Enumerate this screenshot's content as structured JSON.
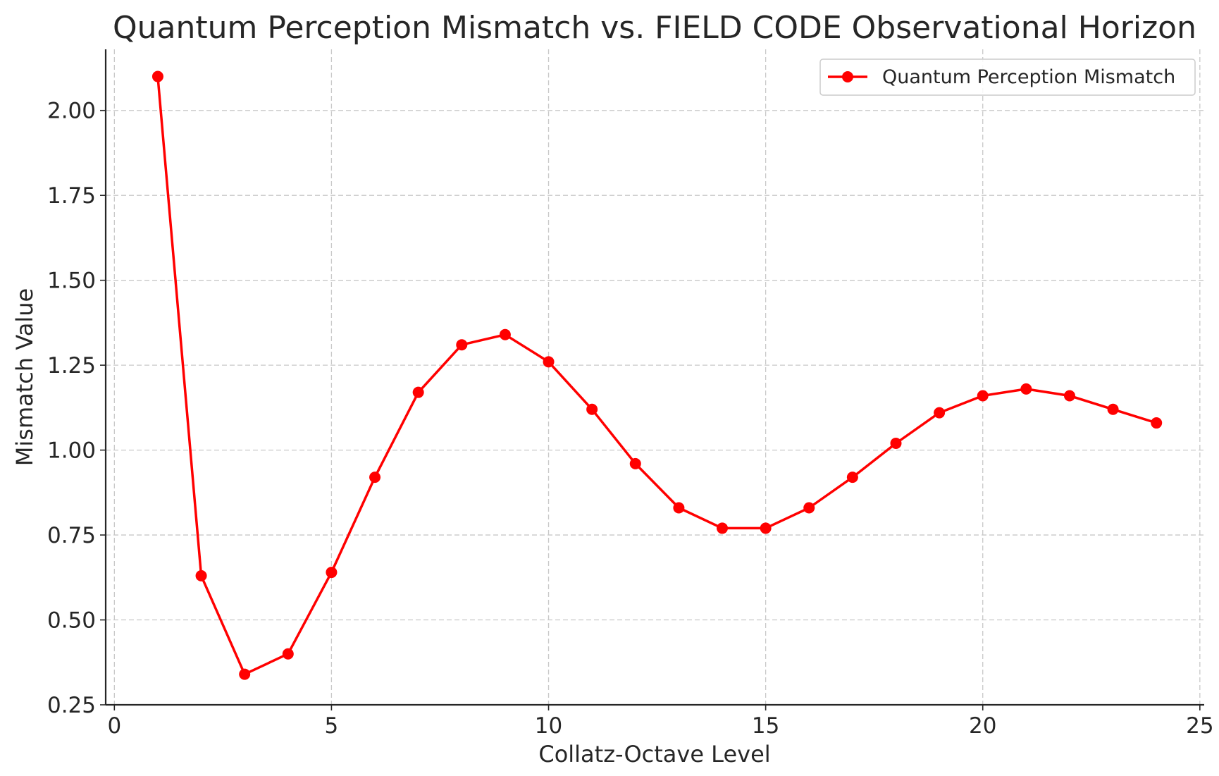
{
  "chart_data": {
    "type": "line",
    "title": "Quantum Perception Mismatch vs. FIELD CODE Observational Horizon",
    "xlabel": "Collatz-Octave Level",
    "ylabel": "Mismatch Value",
    "xlim": [
      -0.2,
      25.1
    ],
    "ylim": [
      0.25,
      2.18
    ],
    "xticks": [
      0,
      5,
      10,
      15,
      20,
      25
    ],
    "xtick_labels": [
      "0",
      "5",
      "10",
      "15",
      "20",
      "25"
    ],
    "yticks": [
      0.25,
      0.5,
      0.75,
      1.0,
      1.25,
      1.5,
      1.75,
      2.0
    ],
    "ytick_labels": [
      "0.25",
      "0.50",
      "0.75",
      "1.00",
      "1.25",
      "1.50",
      "1.75",
      "2.00"
    ],
    "grid": true,
    "legend_position": "top-right",
    "series": [
      {
        "name": "Quantum Perception Mismatch",
        "color": "#ff0000",
        "marker": "circle",
        "x": [
          1,
          2,
          3,
          4,
          5,
          6,
          7,
          8,
          9,
          10,
          11,
          12,
          13,
          14,
          15,
          16,
          17,
          18,
          19,
          20,
          21,
          22,
          23,
          24
        ],
        "y": [
          2.1,
          0.63,
          0.34,
          0.4,
          0.64,
          0.92,
          1.17,
          1.31,
          1.34,
          1.26,
          1.12,
          0.96,
          0.83,
          0.77,
          0.77,
          0.83,
          0.92,
          1.02,
          1.11,
          1.16,
          1.18,
          1.16,
          1.12,
          1.08
        ]
      }
    ]
  }
}
